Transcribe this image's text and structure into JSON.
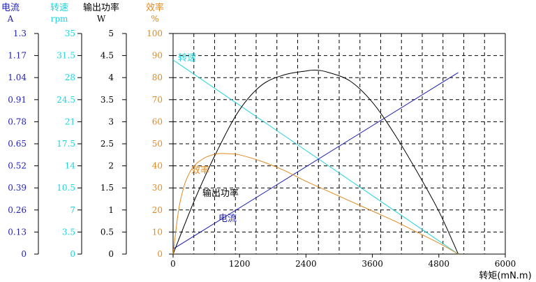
{
  "chart_data": {
    "type": "line",
    "xlabel": "转矩(mN.m)",
    "x_ticks": [
      0,
      1200,
      2400,
      3600,
      4800,
      6000
    ],
    "xlim": [
      0,
      6000
    ],
    "grid": true,
    "axes": [
      {
        "id": "current",
        "title": "电流",
        "unit": "A",
        "color": "#1f1fb4",
        "range": [
          0,
          1.3
        ],
        "ticks": [
          "0",
          "0.13",
          "0.26",
          "0.39",
          "0.52",
          "0.65",
          "0.78",
          "0.91",
          "1.04",
          "1.17",
          "1.3"
        ]
      },
      {
        "id": "speed",
        "title": "转速",
        "unit": "rpm",
        "color": "#21d4dc",
        "range": [
          0,
          35
        ],
        "ticks": [
          "0",
          "3.5",
          "7",
          "10.5",
          "14",
          "17.5",
          "21",
          "24.5",
          "28",
          "31.5",
          "35"
        ]
      },
      {
        "id": "power",
        "title": "输出功率",
        "unit": "W",
        "color": "#000000",
        "range": [
          0,
          5
        ],
        "ticks": [
          "0",
          "0.5",
          "1",
          "1.5",
          "2",
          "2.5",
          "3",
          "3.5",
          "4",
          "4.5",
          "5"
        ]
      },
      {
        "id": "efficiency",
        "title": "效率",
        "unit": "%",
        "color": "#e08a1e",
        "range": [
          0,
          100
        ],
        "ticks": [
          "0",
          "10",
          "20",
          "30",
          "40",
          "50",
          "60",
          "70",
          "80",
          "90",
          "100"
        ]
      }
    ],
    "series": [
      {
        "name": "转速",
        "axis": "speed",
        "color": "#21d4dc",
        "x": [
          0,
          5150
        ],
        "y": [
          30.8,
          0
        ]
      },
      {
        "name": "电流",
        "axis": "current",
        "color": "#1f1fb4",
        "x": [
          0,
          5150
        ],
        "y": [
          0.03,
          1.07
        ]
      },
      {
        "name": "输出功率",
        "axis": "power",
        "color": "#000000",
        "x": [
          0,
          400,
          800,
          1200,
          1600,
          2000,
          2400,
          2575,
          2800,
          3200,
          3600,
          4000,
          4400,
          4800,
          5150
        ],
        "y": [
          0,
          1.26,
          2.35,
          3.27,
          3.83,
          4.06,
          4.15,
          4.17,
          4.12,
          3.92,
          3.44,
          2.72,
          1.88,
          0.97,
          0
        ]
      },
      {
        "name": "效率",
        "axis": "efficiency",
        "color": "#e08a1e",
        "x": [
          0,
          100,
          200,
          300,
          400,
          500,
          600,
          800,
          1000,
          1200,
          1600,
          2000,
          2400,
          2800,
          3200,
          3600,
          4000,
          4400,
          4800,
          5150
        ],
        "y": [
          0,
          20,
          31,
          37,
          40.5,
          42.5,
          44,
          45.5,
          45.5,
          45,
          42,
          38,
          33,
          28.5,
          24,
          19.5,
          15,
          10,
          5,
          0
        ]
      }
    ]
  }
}
